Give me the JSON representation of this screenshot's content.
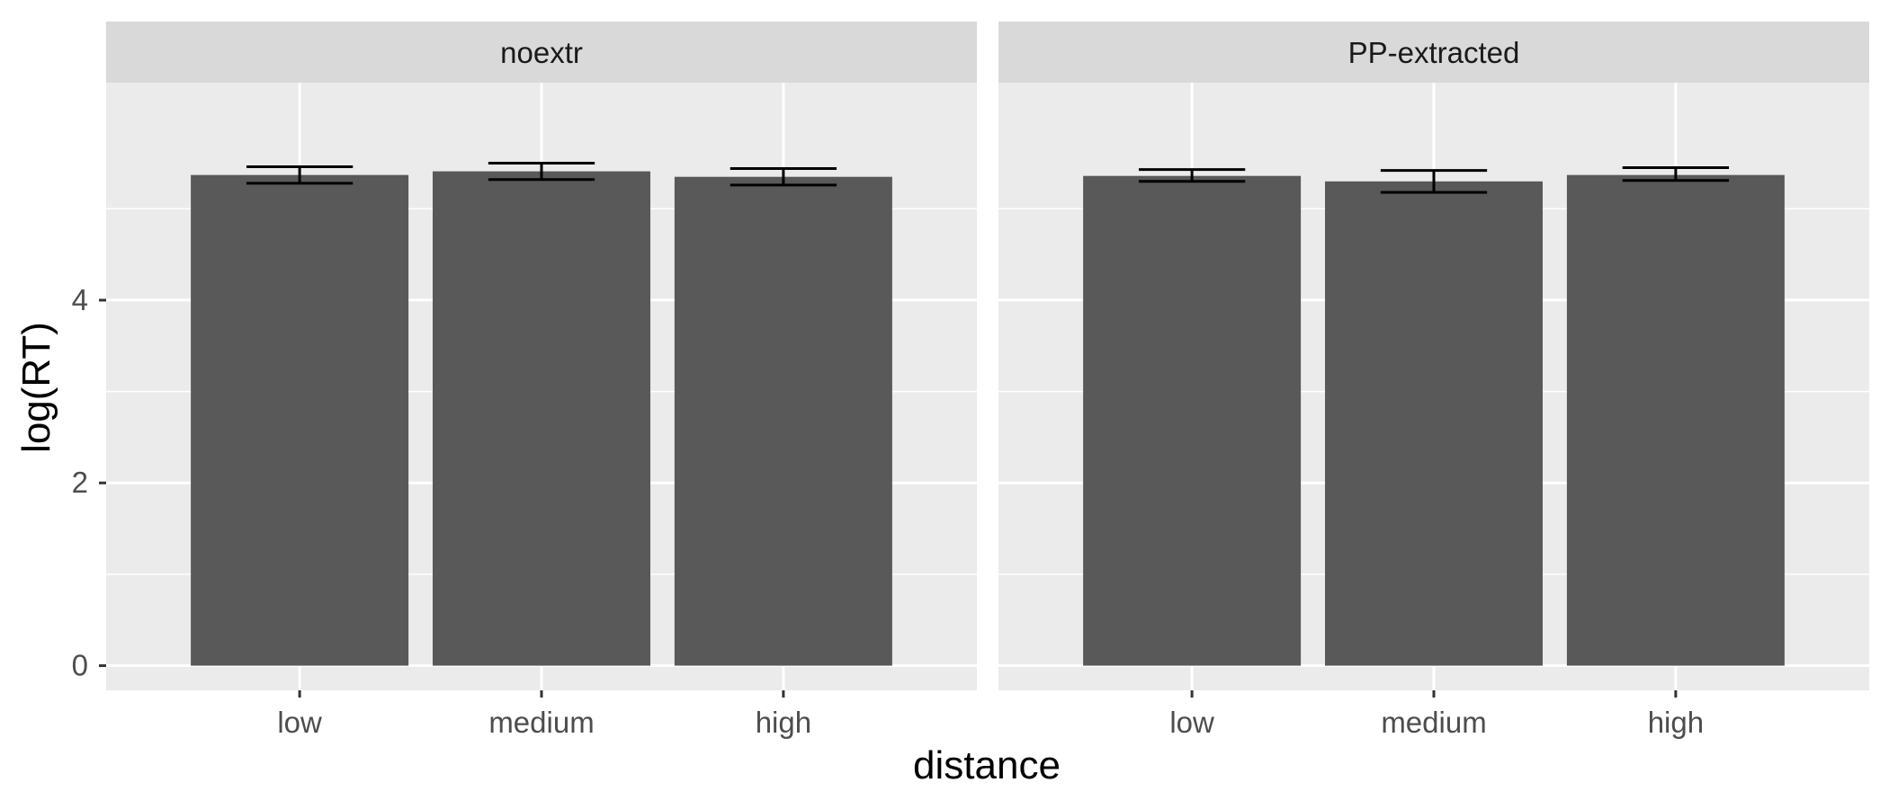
{
  "chart_data": {
    "type": "bar",
    "xlabel": "distance",
    "ylabel": "log(RT)",
    "ylim": [
      -0.27,
      6.38
    ],
    "yticks": [
      0,
      2,
      4
    ],
    "categories": [
      "low",
      "medium",
      "high"
    ],
    "grid": true,
    "colors": {
      "bar": "#595959",
      "panel": "#ebebeb",
      "strip": "#d9d9d9",
      "grid": "#ffffff",
      "errorbar": "#000000"
    },
    "panels": [
      {
        "label": "noextr",
        "values": [
          5.37,
          5.41,
          5.35
        ],
        "error_low": [
          5.28,
          5.32,
          5.26
        ],
        "error_high": [
          5.46,
          5.5,
          5.44
        ]
      },
      {
        "label": "PP-extracted",
        "values": [
          5.36,
          5.3,
          5.37
        ],
        "error_low": [
          5.3,
          5.18,
          5.31
        ],
        "error_high": [
          5.43,
          5.42,
          5.45
        ]
      }
    ]
  }
}
